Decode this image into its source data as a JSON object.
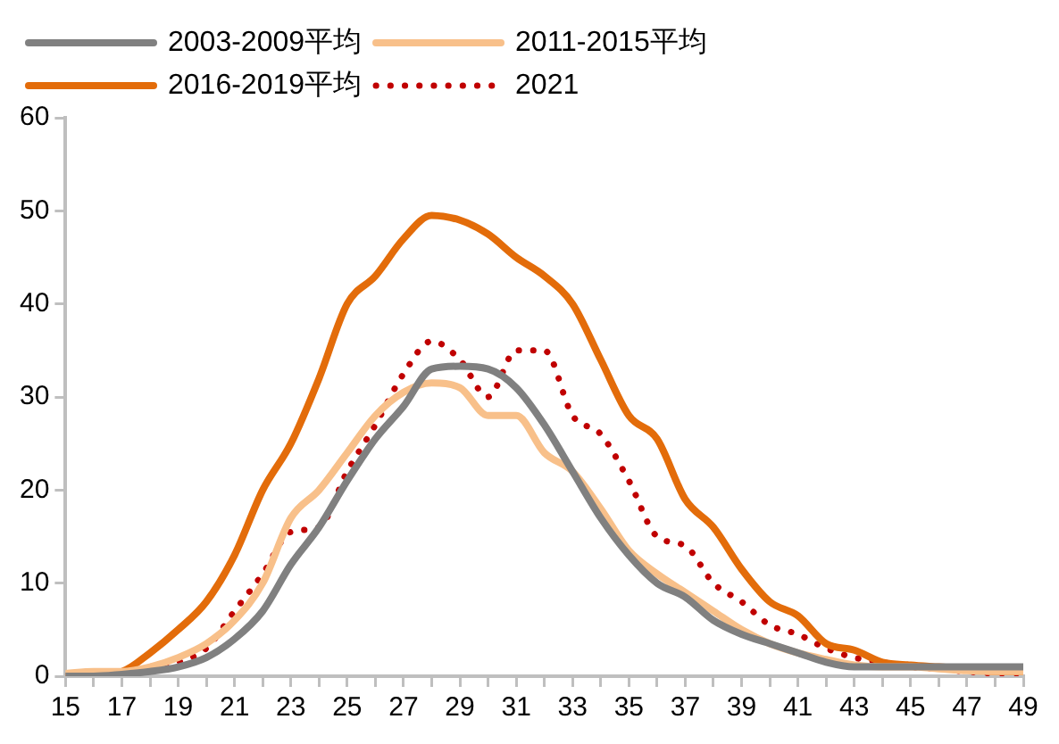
{
  "chart_data": {
    "type": "line",
    "x": [
      15,
      16,
      17,
      18,
      19,
      20,
      21,
      22,
      23,
      24,
      25,
      26,
      27,
      28,
      29,
      30,
      31,
      32,
      33,
      34,
      35,
      36,
      37,
      38,
      39,
      40,
      41,
      42,
      43,
      44,
      45,
      46,
      47,
      48,
      49
    ],
    "series": [
      {
        "name": "2003-2009平均",
        "color": "#808080",
        "line_style": "solid",
        "values": [
          0,
          0,
          0.2,
          0.5,
          1,
          2,
          4,
          7,
          12,
          16,
          21,
          25.5,
          29,
          33,
          33.3,
          33,
          31,
          27,
          22,
          17,
          13,
          10,
          8.5,
          6,
          4.5,
          3.5,
          2.5,
          1.5,
          1,
          1,
          1,
          1,
          1,
          1,
          1
        ]
      },
      {
        "name": "2011-2015平均",
        "color": "#f8c08a",
        "line_style": "solid",
        "values": [
          0.3,
          0.5,
          0.5,
          1,
          2,
          3.5,
          6,
          10,
          17,
          20,
          24,
          28,
          30.5,
          31.5,
          31,
          28,
          28,
          24,
          22,
          18,
          13.5,
          11,
          9,
          7,
          5,
          3.5,
          2.5,
          1.8,
          1.2,
          1,
          1,
          0.8,
          0.6,
          0.5,
          0.5
        ]
      },
      {
        "name": "2016-2019平均",
        "color": "#e36c0a",
        "line_style": "solid",
        "values": [
          0,
          0.2,
          0.5,
          2.5,
          5,
          8,
          13,
          20,
          25,
          32,
          40,
          43,
          47,
          49.5,
          49,
          47.5,
          45,
          43,
          40,
          34,
          28,
          25.5,
          19,
          16,
          11.5,
          8,
          6.5,
          3.5,
          2.8,
          1.5,
          1.2,
          1,
          0.8,
          0.5,
          0.5
        ]
      },
      {
        "name": "2021",
        "color": "#c00000",
        "line_style": "dotted",
        "values": [
          0,
          0,
          0.3,
          1,
          1.5,
          3,
          7,
          11,
          15.5,
          16,
          22,
          27,
          32.5,
          36,
          34,
          30,
          35,
          35,
          28,
          26,
          21,
          15,
          14,
          10,
          8,
          5.5,
          4.5,
          3,
          2,
          1.5,
          1,
          0.8,
          0.5,
          0.3,
          0.3
        ]
      }
    ],
    "xlim": [
      15,
      49
    ],
    "xticks": [
      15,
      {
        "value": 16,
        "label": null
      },
      17,
      {
        "value": 18,
        "label": null
      },
      19,
      {
        "value": 20,
        "label": null
      },
      21,
      {
        "value": 22,
        "label": null
      },
      23,
      {
        "value": 24,
        "label": null
      },
      25,
      {
        "value": 26,
        "label": null
      },
      27,
      {
        "value": 28,
        "label": null
      },
      29,
      {
        "value": 30,
        "label": null
      },
      31,
      {
        "value": 32,
        "label": null
      },
      33,
      {
        "value": 34,
        "label": null
      },
      35,
      {
        "value": 36,
        "label": null
      },
      37,
      {
        "value": 38,
        "label": null
      },
      39,
      {
        "value": 40,
        "label": null
      },
      41,
      {
        "value": 42,
        "label": null
      },
      43,
      {
        "value": 44,
        "label": null
      },
      45,
      {
        "value": 46,
        "label": null
      },
      47,
      {
        "value": 48,
        "label": null
      },
      49
    ],
    "ylim": [
      0,
      60
    ],
    "yticks": [
      0,
      10,
      20,
      30,
      40,
      50,
      60
    ],
    "grid": false,
    "legend": "top",
    "marker": "none"
  }
}
